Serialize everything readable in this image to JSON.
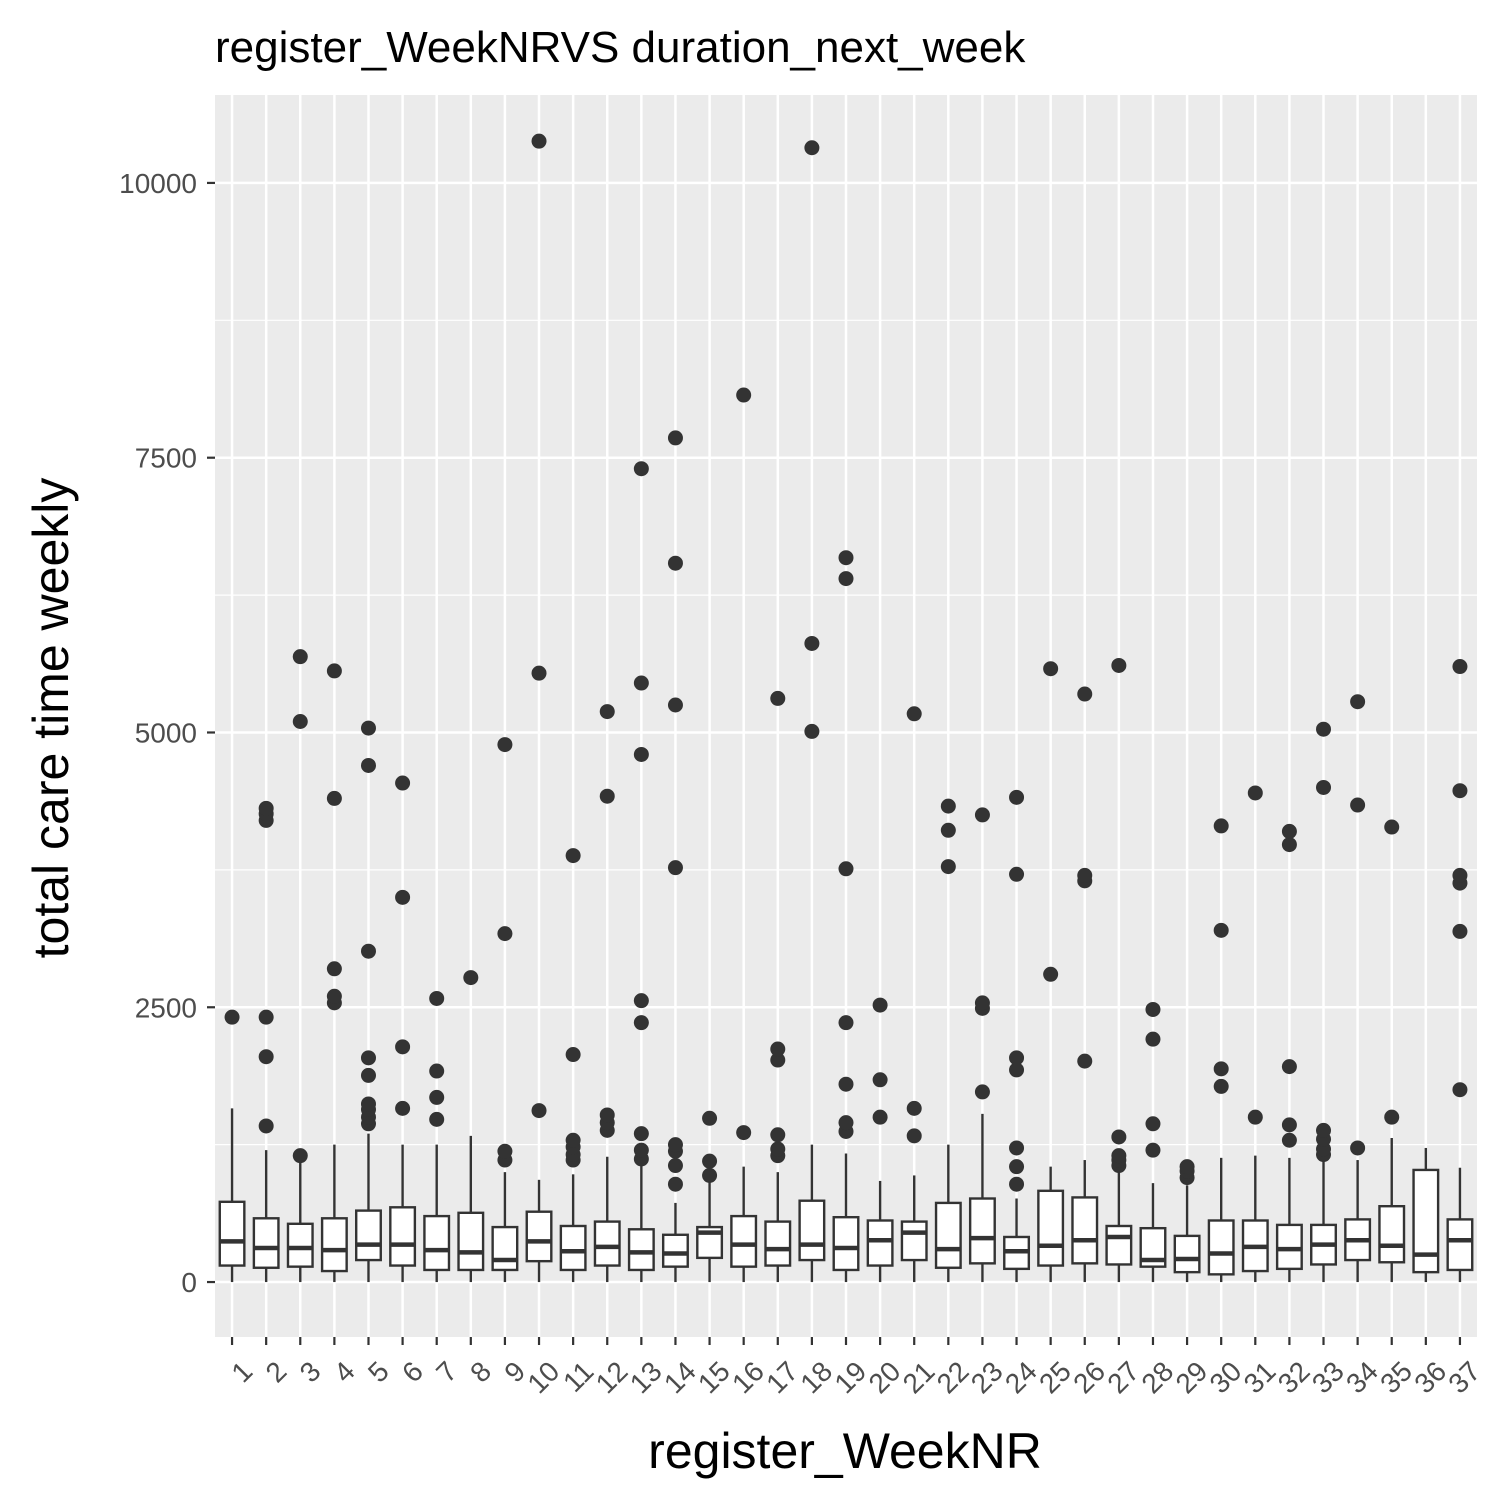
{
  "chart_data": {
    "type": "boxplot",
    "title": "register_WeekNRVS duration_next_week",
    "xlabel": "register_WeekNR",
    "ylabel": "total care time weekly",
    "ylim": [
      -500,
      10800
    ],
    "yticks": [
      0,
      2500,
      5000,
      7500,
      10000
    ],
    "grid": true,
    "categories": [
      "1",
      "2",
      "3",
      "4",
      "5",
      "6",
      "7",
      "8",
      "9",
      "10",
      "11",
      "12",
      "13",
      "14",
      "15",
      "16",
      "17",
      "18",
      "19",
      "20",
      "21",
      "22",
      "23",
      "24",
      "25",
      "26",
      "27",
      "28",
      "29",
      "30",
      "31",
      "32",
      "33",
      "34",
      "35",
      "36",
      "37"
    ],
    "boxes": [
      {
        "min": 0,
        "q1": 150,
        "median": 370,
        "q3": 730,
        "max": 1580,
        "outliers": [
          2410
        ]
      },
      {
        "min": 0,
        "q1": 130,
        "median": 310,
        "q3": 580,
        "max": 1200,
        "outliers": [
          1420,
          2050,
          2410,
          4200,
          4260,
          4310
        ]
      },
      {
        "min": 0,
        "q1": 140,
        "median": 310,
        "q3": 530,
        "max": 1100,
        "outliers": [
          1150,
          5100,
          5690
        ]
      },
      {
        "min": 0,
        "q1": 100,
        "median": 290,
        "q3": 580,
        "max": 1250,
        "outliers": [
          2540,
          2600,
          2850,
          4400,
          5560
        ]
      },
      {
        "min": 0,
        "q1": 200,
        "median": 340,
        "q3": 650,
        "max": 1350,
        "outliers": [
          1440,
          1500,
          1570,
          1620,
          1880,
          2040,
          3010,
          4700,
          5040
        ]
      },
      {
        "min": 0,
        "q1": 150,
        "median": 340,
        "q3": 680,
        "max": 1250,
        "outliers": [
          1580,
          2140,
          3500,
          4540
        ]
      },
      {
        "min": 0,
        "q1": 110,
        "median": 290,
        "q3": 600,
        "max": 1250,
        "outliers": [
          1480,
          1680,
          1920,
          2580
        ]
      },
      {
        "min": 0,
        "q1": 110,
        "median": 270,
        "q3": 630,
        "max": 1330,
        "outliers": [
          2770
        ]
      },
      {
        "min": 0,
        "q1": 110,
        "median": 200,
        "q3": 500,
        "max": 1000,
        "outliers": [
          1110,
          1190,
          3170,
          4890
        ]
      },
      {
        "min": 0,
        "q1": 190,
        "median": 370,
        "q3": 640,
        "max": 930,
        "outliers": [
          1560,
          5540,
          10380
        ]
      },
      {
        "min": 0,
        "q1": 110,
        "median": 280,
        "q3": 510,
        "max": 980,
        "outliers": [
          1110,
          1160,
          1230,
          1290,
          2070,
          3880
        ]
      },
      {
        "min": 0,
        "q1": 150,
        "median": 320,
        "q3": 550,
        "max": 1140,
        "outliers": [
          1380,
          1450,
          1520,
          4420,
          5190
        ]
      },
      {
        "min": 0,
        "q1": 110,
        "median": 270,
        "q3": 480,
        "max": 1090,
        "outliers": [
          1120,
          1200,
          1350,
          2360,
          2560,
          4800,
          5450,
          7400
        ]
      },
      {
        "min": 0,
        "q1": 140,
        "median": 260,
        "q3": 430,
        "max": 720,
        "outliers": [
          890,
          1060,
          1190,
          1250,
          3770,
          5250,
          6540,
          7680
        ]
      },
      {
        "min": 0,
        "q1": 220,
        "median": 450,
        "q3": 500,
        "max": 930,
        "outliers": [
          970,
          1100,
          1490
        ]
      },
      {
        "min": 0,
        "q1": 140,
        "median": 340,
        "q3": 600,
        "max": 1050,
        "outliers": [
          1360,
          8070
        ]
      },
      {
        "min": 0,
        "q1": 150,
        "median": 300,
        "q3": 550,
        "max": 1000,
        "outliers": [
          1150,
          1210,
          1340,
          2020,
          2120,
          5310
        ]
      },
      {
        "min": 0,
        "q1": 200,
        "median": 340,
        "q3": 740,
        "max": 1250,
        "outliers": [
          5010,
          5810,
          10320
        ]
      },
      {
        "min": 0,
        "q1": 110,
        "median": 310,
        "q3": 590,
        "max": 1170,
        "outliers": [
          1370,
          1450,
          1800,
          2360,
          3760,
          6400,
          6590
        ]
      },
      {
        "min": 0,
        "q1": 150,
        "median": 380,
        "q3": 560,
        "max": 920,
        "outliers": [
          1500,
          1840,
          2520
        ]
      },
      {
        "min": 0,
        "q1": 200,
        "median": 450,
        "q3": 550,
        "max": 970,
        "outliers": [
          1330,
          1580,
          5170
        ]
      },
      {
        "min": 0,
        "q1": 130,
        "median": 300,
        "q3": 720,
        "max": 1250,
        "outliers": [
          3780,
          4110,
          4330
        ]
      },
      {
        "min": 0,
        "q1": 170,
        "median": 400,
        "q3": 760,
        "max": 1530,
        "outliers": [
          1730,
          2490,
          2540,
          4250
        ]
      },
      {
        "min": 0,
        "q1": 120,
        "median": 280,
        "q3": 410,
        "max": 760,
        "outliers": [
          890,
          1050,
          1220,
          1930,
          2040,
          3710,
          4410
        ]
      },
      {
        "min": 0,
        "q1": 150,
        "median": 330,
        "q3": 830,
        "max": 1050,
        "outliers": [
          2800,
          5580
        ]
      },
      {
        "min": 0,
        "q1": 170,
        "median": 380,
        "q3": 770,
        "max": 1110,
        "outliers": [
          2010,
          3650,
          3700,
          5350
        ]
      },
      {
        "min": 0,
        "q1": 160,
        "median": 410,
        "q3": 510,
        "max": 1000,
        "outliers": [
          1060,
          1110,
          1150,
          1320,
          5610
        ]
      },
      {
        "min": 0,
        "q1": 140,
        "median": 200,
        "q3": 490,
        "max": 900,
        "outliers": [
          1200,
          1440,
          2210,
          2480
        ]
      },
      {
        "min": 0,
        "q1": 90,
        "median": 210,
        "q3": 420,
        "max": 880,
        "outliers": [
          950,
          1010,
          1050
        ]
      },
      {
        "min": 0,
        "q1": 70,
        "median": 260,
        "q3": 560,
        "max": 1130,
        "outliers": [
          1780,
          1940,
          3200,
          4150
        ]
      },
      {
        "min": 0,
        "q1": 100,
        "median": 320,
        "q3": 560,
        "max": 1150,
        "outliers": [
          1500,
          4450
        ]
      },
      {
        "min": 0,
        "q1": 120,
        "median": 300,
        "q3": 520,
        "max": 1130,
        "outliers": [
          1290,
          1430,
          1960,
          3980,
          4100
        ]
      },
      {
        "min": 0,
        "q1": 160,
        "median": 340,
        "q3": 520,
        "max": 1110,
        "outliers": [
          1160,
          1210,
          1300,
          1380,
          4500,
          5030
        ]
      },
      {
        "min": 0,
        "q1": 200,
        "median": 380,
        "q3": 570,
        "max": 1110,
        "outliers": [
          1220,
          4340,
          5280
        ]
      },
      {
        "min": 0,
        "q1": 180,
        "median": 330,
        "q3": 690,
        "max": 1310,
        "outliers": [
          1500,
          4140
        ]
      },
      {
        "min": 0,
        "q1": 90,
        "median": 250,
        "q3": 1020,
        "max": 1220,
        "outliers": []
      },
      {
        "min": 0,
        "q1": 110,
        "median": 380,
        "q3": 570,
        "max": 1040,
        "outliers": [
          1750,
          3190,
          3630,
          3700,
          4470,
          5600
        ]
      }
    ],
    "colors": {
      "panel_background": "#ebebeb",
      "grid_major": "#ffffff",
      "box_line": "#333333",
      "box_fill": "#ffffff",
      "outlier": "#333333",
      "tick_text": "#4d4d4d",
      "text": "#000000"
    }
  }
}
